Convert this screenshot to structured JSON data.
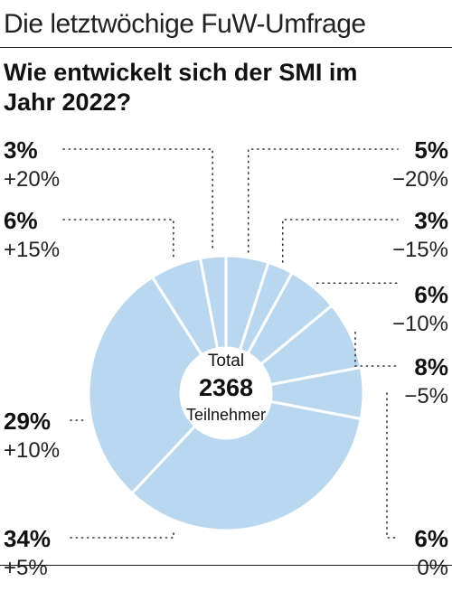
{
  "header": {
    "title": "Die letztwöchige FuW-Umfrage"
  },
  "chart_data": {
    "type": "pie",
    "title": "Wie entwickelt sich der SMI im Jahr 2022?",
    "center": {
      "label_top": "Total",
      "total": "2368",
      "label_bottom": "Teilnehmer"
    },
    "slices": [
      {
        "category": "−20%",
        "percent_label": "5%",
        "value": 5
      },
      {
        "category": "−15%",
        "percent_label": "3%",
        "value": 3
      },
      {
        "category": "−10%",
        "percent_label": "6%",
        "value": 6
      },
      {
        "category": "−5%",
        "percent_label": "8%",
        "value": 8
      },
      {
        "category": "0%",
        "percent_label": "6%",
        "value": 6
      },
      {
        "category": "+5%",
        "percent_label": "34%",
        "value": 34
      },
      {
        "category": "+10%",
        "percent_label": "29%",
        "value": 29
      },
      {
        "category": "+15%",
        "percent_label": "6%",
        "value": 6
      },
      {
        "category": "+20%",
        "percent_label": "3%",
        "value": 3
      }
    ],
    "colors": {
      "slice_fill": "#b9d8f0",
      "slice_stroke": "#ffffff",
      "leader": "#333333"
    }
  }
}
